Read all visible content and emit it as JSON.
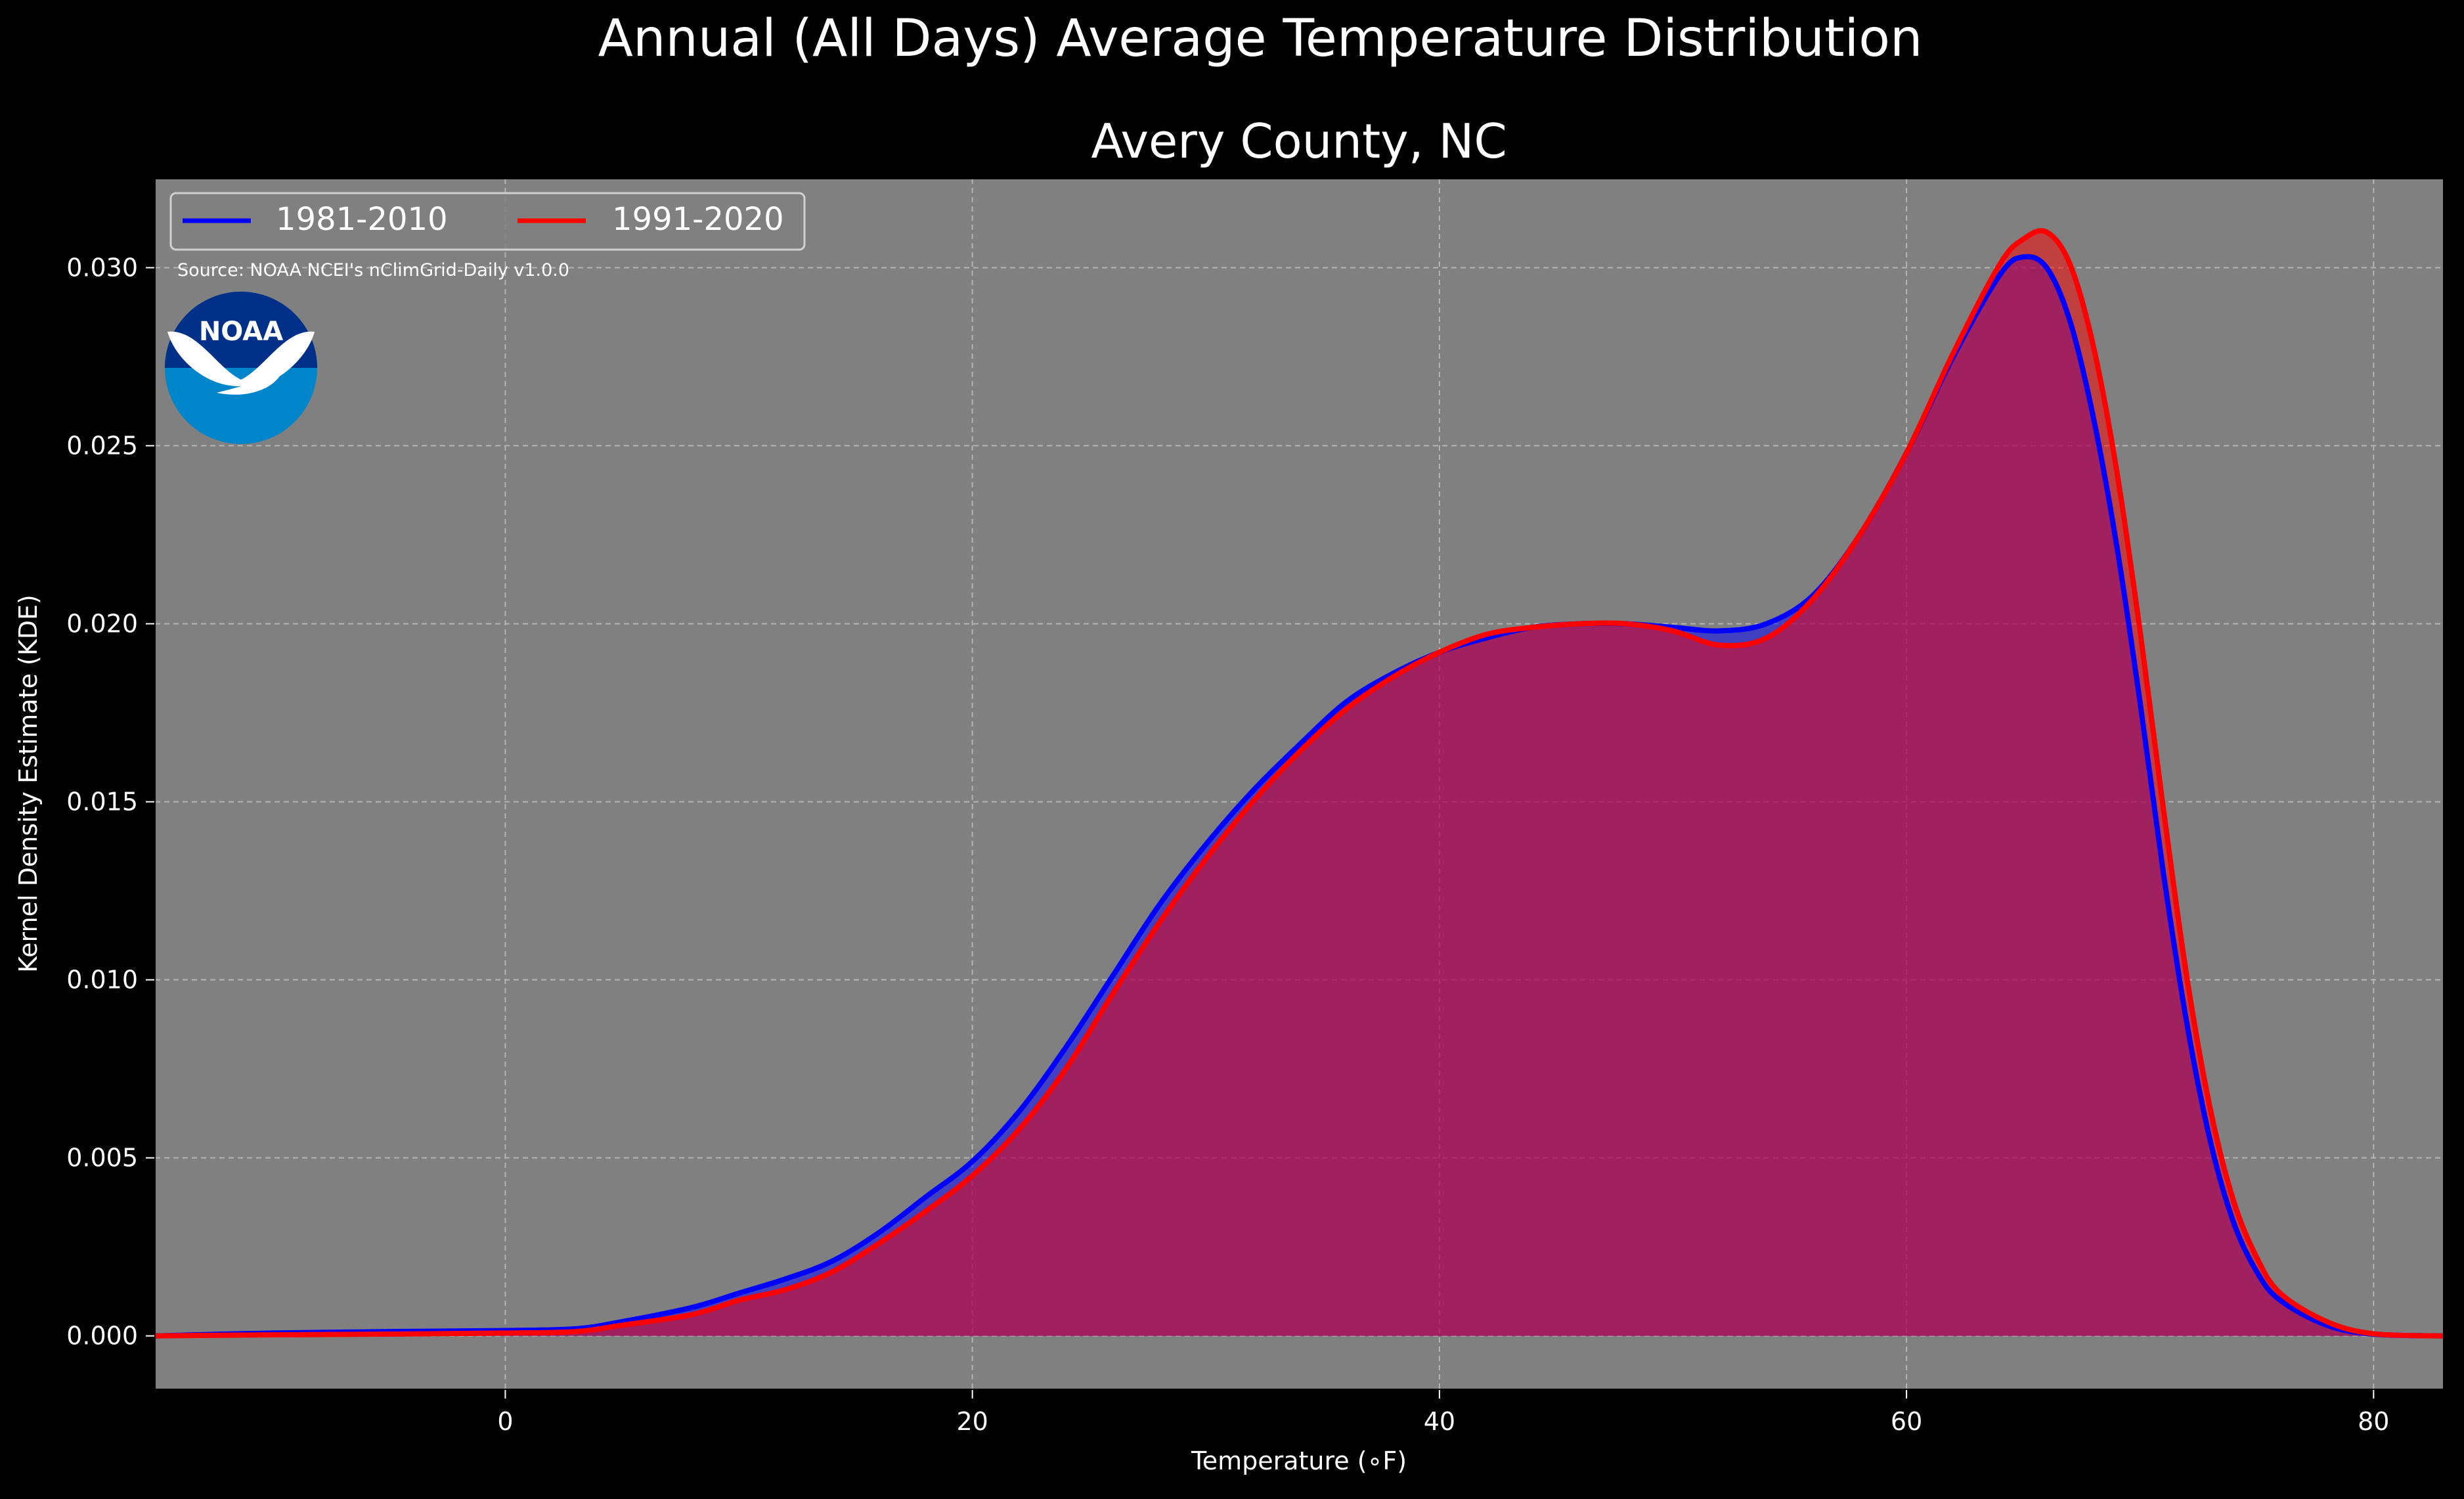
{
  "chart_data": {
    "type": "area",
    "suptitle": "Annual (All Days) Average Temperature Distribution",
    "title": "Avery County, NC",
    "xlabel": "Temperature (∘F)",
    "ylabel": "Kernel Density Estimate (KDE)",
    "xlim": [
      -15,
      83
    ],
    "ylim": [
      -0.0015,
      0.0325
    ],
    "xticks": [
      0,
      20,
      40,
      60,
      80
    ],
    "xtick_labels": [
      "0",
      "20",
      "40",
      "60",
      "80"
    ],
    "yticks": [
      0.0,
      0.005,
      0.01,
      0.015,
      0.02,
      0.025,
      0.03
    ],
    "ytick_labels": [
      "0.000",
      "0.005",
      "0.010",
      "0.015",
      "0.020",
      "0.025",
      "0.030"
    ],
    "grid": true,
    "legend_position": "top-left",
    "background_color": "#808080",
    "figure_color": "#000000",
    "source_note": "Source: NOAA NCEI's nClimGrid-Daily v1.0.0",
    "logo": {
      "text": "NOAA",
      "icon": "noaa-logo"
    },
    "x": [
      -15,
      -10,
      -5,
      0,
      3,
      5,
      8,
      10,
      12,
      14,
      16,
      18,
      20,
      22,
      24,
      26,
      28,
      30,
      32,
      34,
      36,
      38,
      40,
      42,
      44,
      46,
      48,
      50,
      52,
      54,
      56,
      58,
      60,
      62,
      64,
      65,
      66,
      67,
      68,
      69,
      70,
      71,
      72,
      73,
      74,
      75,
      76,
      78,
      80,
      83
    ],
    "series": [
      {
        "name": "1981-2010",
        "color": "#0000ff",
        "values": [
          0.0,
          8e-05,
          0.00012,
          0.00015,
          0.0002,
          0.0004,
          0.0008,
          0.0012,
          0.0016,
          0.0021,
          0.0029,
          0.0039,
          0.0049,
          0.0063,
          0.0081,
          0.0101,
          0.0121,
          0.0138,
          0.0153,
          0.0166,
          0.0178,
          0.0186,
          0.0192,
          0.0196,
          0.0199,
          0.02,
          0.02,
          0.0199,
          0.0198,
          0.02,
          0.0208,
          0.0225,
          0.0248,
          0.0275,
          0.0298,
          0.0303,
          0.03,
          0.0285,
          0.0258,
          0.0222,
          0.0178,
          0.013,
          0.0088,
          0.0055,
          0.0032,
          0.0018,
          0.001,
          0.0003,
          5e-05,
          0.0
        ]
      },
      {
        "name": "1991-2020",
        "color": "#ff0000",
        "values": [
          0.0,
          3e-05,
          5e-05,
          8e-05,
          0.00012,
          0.0003,
          0.0006,
          0.001,
          0.0013,
          0.0018,
          0.0026,
          0.0035,
          0.0045,
          0.0058,
          0.0075,
          0.0096,
          0.0116,
          0.0134,
          0.015,
          0.0164,
          0.0176,
          0.0185,
          0.0192,
          0.0197,
          0.0199,
          0.02,
          0.02,
          0.0198,
          0.0194,
          0.0196,
          0.0207,
          0.0225,
          0.0248,
          0.0276,
          0.0301,
          0.0308,
          0.031,
          0.0301,
          0.0278,
          0.0243,
          0.0198,
          0.0148,
          0.0101,
          0.0064,
          0.0038,
          0.0022,
          0.0012,
          0.0004,
          6e-05,
          0.0
        ]
      }
    ]
  }
}
